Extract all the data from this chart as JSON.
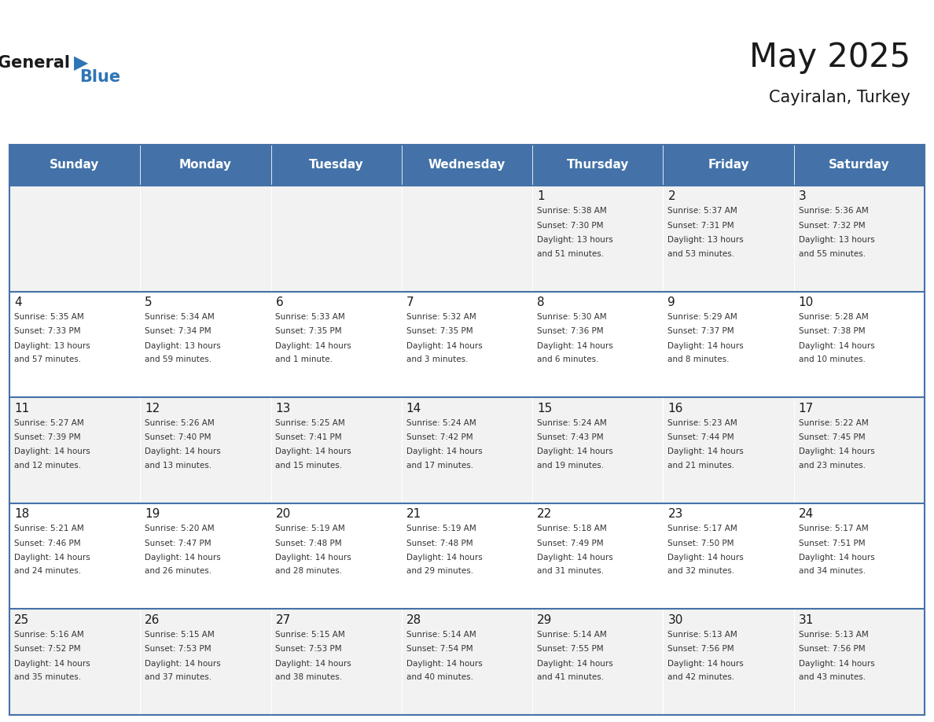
{
  "title": "May 2025",
  "subtitle": "Cayiralan, Turkey",
  "header_bg_color": "#4472A8",
  "header_text_color": "#FFFFFF",
  "cell_bg_odd": "#F2F2F2",
  "cell_bg_even": "#FFFFFF",
  "cell_text_color": "#333333",
  "day_num_color": "#1a1a1a",
  "border_color": "#4472A8",
  "days_of_week": [
    "Sunday",
    "Monday",
    "Tuesday",
    "Wednesday",
    "Thursday",
    "Friday",
    "Saturday"
  ],
  "weeks": [
    [
      {
        "day": "",
        "sunrise": "",
        "sunset": "",
        "daylight": ""
      },
      {
        "day": "",
        "sunrise": "",
        "sunset": "",
        "daylight": ""
      },
      {
        "day": "",
        "sunrise": "",
        "sunset": "",
        "daylight": ""
      },
      {
        "day": "",
        "sunrise": "",
        "sunset": "",
        "daylight": ""
      },
      {
        "day": "1",
        "sunrise": "Sunrise: 5:38 AM",
        "sunset": "Sunset: 7:30 PM",
        "daylight": "Daylight: 13 hours\nand 51 minutes."
      },
      {
        "day": "2",
        "sunrise": "Sunrise: 5:37 AM",
        "sunset": "Sunset: 7:31 PM",
        "daylight": "Daylight: 13 hours\nand 53 minutes."
      },
      {
        "day": "3",
        "sunrise": "Sunrise: 5:36 AM",
        "sunset": "Sunset: 7:32 PM",
        "daylight": "Daylight: 13 hours\nand 55 minutes."
      }
    ],
    [
      {
        "day": "4",
        "sunrise": "Sunrise: 5:35 AM",
        "sunset": "Sunset: 7:33 PM",
        "daylight": "Daylight: 13 hours\nand 57 minutes."
      },
      {
        "day": "5",
        "sunrise": "Sunrise: 5:34 AM",
        "sunset": "Sunset: 7:34 PM",
        "daylight": "Daylight: 13 hours\nand 59 minutes."
      },
      {
        "day": "6",
        "sunrise": "Sunrise: 5:33 AM",
        "sunset": "Sunset: 7:35 PM",
        "daylight": "Daylight: 14 hours\nand 1 minute."
      },
      {
        "day": "7",
        "sunrise": "Sunrise: 5:32 AM",
        "sunset": "Sunset: 7:35 PM",
        "daylight": "Daylight: 14 hours\nand 3 minutes."
      },
      {
        "day": "8",
        "sunrise": "Sunrise: 5:30 AM",
        "sunset": "Sunset: 7:36 PM",
        "daylight": "Daylight: 14 hours\nand 6 minutes."
      },
      {
        "day": "9",
        "sunrise": "Sunrise: 5:29 AM",
        "sunset": "Sunset: 7:37 PM",
        "daylight": "Daylight: 14 hours\nand 8 minutes."
      },
      {
        "day": "10",
        "sunrise": "Sunrise: 5:28 AM",
        "sunset": "Sunset: 7:38 PM",
        "daylight": "Daylight: 14 hours\nand 10 minutes."
      }
    ],
    [
      {
        "day": "11",
        "sunrise": "Sunrise: 5:27 AM",
        "sunset": "Sunset: 7:39 PM",
        "daylight": "Daylight: 14 hours\nand 12 minutes."
      },
      {
        "day": "12",
        "sunrise": "Sunrise: 5:26 AM",
        "sunset": "Sunset: 7:40 PM",
        "daylight": "Daylight: 14 hours\nand 13 minutes."
      },
      {
        "day": "13",
        "sunrise": "Sunrise: 5:25 AM",
        "sunset": "Sunset: 7:41 PM",
        "daylight": "Daylight: 14 hours\nand 15 minutes."
      },
      {
        "day": "14",
        "sunrise": "Sunrise: 5:24 AM",
        "sunset": "Sunset: 7:42 PM",
        "daylight": "Daylight: 14 hours\nand 17 minutes."
      },
      {
        "day": "15",
        "sunrise": "Sunrise: 5:24 AM",
        "sunset": "Sunset: 7:43 PM",
        "daylight": "Daylight: 14 hours\nand 19 minutes."
      },
      {
        "day": "16",
        "sunrise": "Sunrise: 5:23 AM",
        "sunset": "Sunset: 7:44 PM",
        "daylight": "Daylight: 14 hours\nand 21 minutes."
      },
      {
        "day": "17",
        "sunrise": "Sunrise: 5:22 AM",
        "sunset": "Sunset: 7:45 PM",
        "daylight": "Daylight: 14 hours\nand 23 minutes."
      }
    ],
    [
      {
        "day": "18",
        "sunrise": "Sunrise: 5:21 AM",
        "sunset": "Sunset: 7:46 PM",
        "daylight": "Daylight: 14 hours\nand 24 minutes."
      },
      {
        "day": "19",
        "sunrise": "Sunrise: 5:20 AM",
        "sunset": "Sunset: 7:47 PM",
        "daylight": "Daylight: 14 hours\nand 26 minutes."
      },
      {
        "day": "20",
        "sunrise": "Sunrise: 5:19 AM",
        "sunset": "Sunset: 7:48 PM",
        "daylight": "Daylight: 14 hours\nand 28 minutes."
      },
      {
        "day": "21",
        "sunrise": "Sunrise: 5:19 AM",
        "sunset": "Sunset: 7:48 PM",
        "daylight": "Daylight: 14 hours\nand 29 minutes."
      },
      {
        "day": "22",
        "sunrise": "Sunrise: 5:18 AM",
        "sunset": "Sunset: 7:49 PM",
        "daylight": "Daylight: 14 hours\nand 31 minutes."
      },
      {
        "day": "23",
        "sunrise": "Sunrise: 5:17 AM",
        "sunset": "Sunset: 7:50 PM",
        "daylight": "Daylight: 14 hours\nand 32 minutes."
      },
      {
        "day": "24",
        "sunrise": "Sunrise: 5:17 AM",
        "sunset": "Sunset: 7:51 PM",
        "daylight": "Daylight: 14 hours\nand 34 minutes."
      }
    ],
    [
      {
        "day": "25",
        "sunrise": "Sunrise: 5:16 AM",
        "sunset": "Sunset: 7:52 PM",
        "daylight": "Daylight: 14 hours\nand 35 minutes."
      },
      {
        "day": "26",
        "sunrise": "Sunrise: 5:15 AM",
        "sunset": "Sunset: 7:53 PM",
        "daylight": "Daylight: 14 hours\nand 37 minutes."
      },
      {
        "day": "27",
        "sunrise": "Sunrise: 5:15 AM",
        "sunset": "Sunset: 7:53 PM",
        "daylight": "Daylight: 14 hours\nand 38 minutes."
      },
      {
        "day": "28",
        "sunrise": "Sunrise: 5:14 AM",
        "sunset": "Sunset: 7:54 PM",
        "daylight": "Daylight: 14 hours\nand 40 minutes."
      },
      {
        "day": "29",
        "sunrise": "Sunrise: 5:14 AM",
        "sunset": "Sunset: 7:55 PM",
        "daylight": "Daylight: 14 hours\nand 41 minutes."
      },
      {
        "day": "30",
        "sunrise": "Sunrise: 5:13 AM",
        "sunset": "Sunset: 7:56 PM",
        "daylight": "Daylight: 14 hours\nand 42 minutes."
      },
      {
        "day": "31",
        "sunrise": "Sunrise: 5:13 AM",
        "sunset": "Sunset: 7:56 PM",
        "daylight": "Daylight: 14 hours\nand 43 minutes."
      }
    ]
  ]
}
